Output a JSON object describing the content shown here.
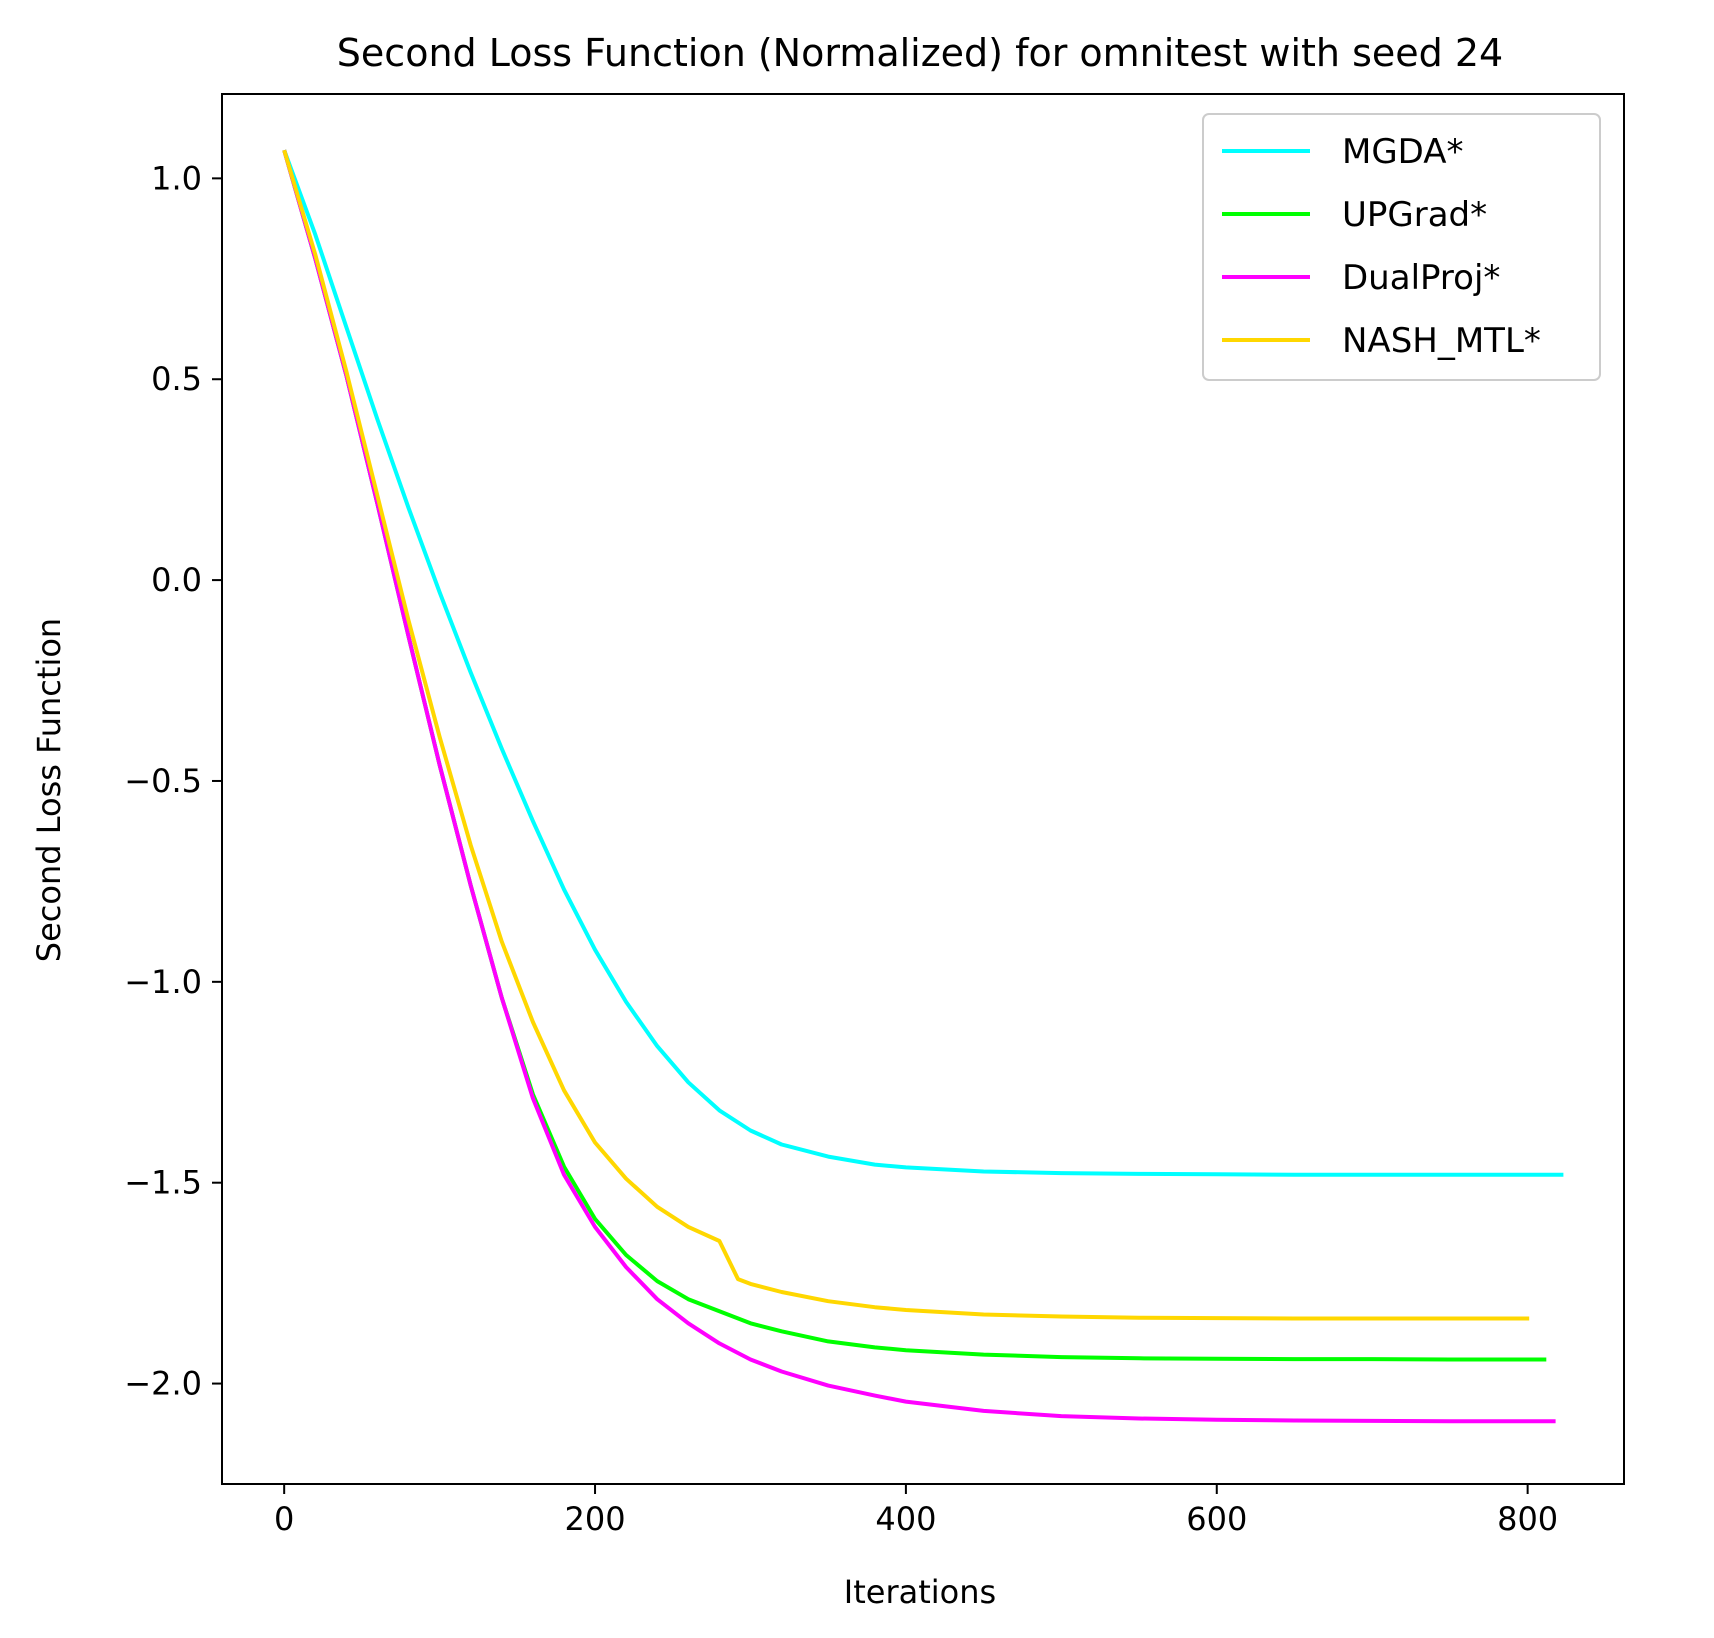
{
  "chart_data": {
    "type": "line",
    "title": "Second Loss Function (Normalized) for omnitest with seed 24",
    "xlabel": "Iterations",
    "ylabel": "Second Loss Function",
    "xlim": [
      -40,
      862
    ],
    "ylim": [
      -2.25,
      1.21
    ],
    "xticks": [
      0,
      200,
      400,
      600,
      800
    ],
    "xtick_labels": [
      "0",
      "200",
      "400",
      "600",
      "800"
    ],
    "yticks": [
      1.0,
      0.5,
      0.0,
      -0.5,
      -1.0,
      -1.5,
      -2.0
    ],
    "ytick_labels": [
      "1.0",
      "0.5",
      "0.0",
      "−0.5",
      "−1.0",
      "−1.5",
      "−2.0"
    ],
    "grid": false,
    "legend_position": "upper right",
    "series": [
      {
        "name": "MGDA*",
        "color": "#00ffff",
        "x": [
          0,
          20,
          40,
          60,
          80,
          100,
          120,
          140,
          160,
          180,
          200,
          220,
          240,
          260,
          280,
          300,
          320,
          350,
          380,
          400,
          450,
          500,
          550,
          600,
          650,
          700,
          750,
          800,
          823
        ],
        "y": [
          1.07,
          0.86,
          0.63,
          0.4,
          0.18,
          -0.03,
          -0.23,
          -0.42,
          -0.6,
          -0.77,
          -0.92,
          -1.05,
          -1.16,
          -1.25,
          -1.32,
          -1.37,
          -1.405,
          -1.435,
          -1.455,
          -1.462,
          -1.472,
          -1.476,
          -1.478,
          -1.479,
          -1.48,
          -1.48,
          -1.48,
          -1.48,
          -1.48
        ]
      },
      {
        "name": "UPGrad*",
        "color": "#00ff00",
        "x": [
          0,
          20,
          40,
          60,
          80,
          100,
          120,
          140,
          160,
          180,
          200,
          220,
          240,
          260,
          280,
          300,
          320,
          350,
          380,
          400,
          450,
          500,
          550,
          600,
          650,
          700,
          750,
          800,
          812
        ],
        "y": [
          1.07,
          0.8,
          0.51,
          0.19,
          -0.14,
          -0.46,
          -0.76,
          -1.04,
          -1.28,
          -1.46,
          -1.59,
          -1.68,
          -1.745,
          -1.79,
          -1.82,
          -1.85,
          -1.87,
          -1.895,
          -1.91,
          -1.917,
          -1.928,
          -1.934,
          -1.937,
          -1.938,
          -1.939,
          -1.939,
          -1.94,
          -1.94,
          -1.94
        ]
      },
      {
        "name": "DualProj*",
        "color": "#ff00ff",
        "x": [
          0,
          20,
          40,
          60,
          80,
          100,
          120,
          140,
          160,
          180,
          200,
          220,
          240,
          260,
          280,
          300,
          320,
          350,
          380,
          400,
          450,
          500,
          550,
          600,
          650,
          700,
          750,
          800,
          818
        ],
        "y": [
          1.07,
          0.8,
          0.51,
          0.19,
          -0.14,
          -0.46,
          -0.76,
          -1.04,
          -1.29,
          -1.48,
          -1.61,
          -1.71,
          -1.79,
          -1.85,
          -1.9,
          -1.94,
          -1.97,
          -2.005,
          -2.03,
          -2.045,
          -2.068,
          -2.081,
          -2.087,
          -2.09,
          -2.092,
          -2.093,
          -2.094,
          -2.094,
          -2.094
        ]
      },
      {
        "name": "NASH_MTL*",
        "color": "#ffd700",
        "x": [
          0,
          20,
          40,
          60,
          80,
          100,
          120,
          140,
          160,
          180,
          200,
          220,
          240,
          260,
          280,
          292,
          300,
          320,
          350,
          380,
          400,
          450,
          500,
          550,
          600,
          650,
          700,
          750,
          801
        ],
        "y": [
          1.07,
          0.81,
          0.52,
          0.21,
          -0.1,
          -0.39,
          -0.66,
          -0.9,
          -1.1,
          -1.27,
          -1.4,
          -1.49,
          -1.56,
          -1.61,
          -1.645,
          -1.74,
          -1.752,
          -1.772,
          -1.795,
          -1.81,
          -1.817,
          -1.828,
          -1.833,
          -1.836,
          -1.837,
          -1.838,
          -1.838,
          -1.838,
          -1.838
        ]
      }
    ]
  }
}
